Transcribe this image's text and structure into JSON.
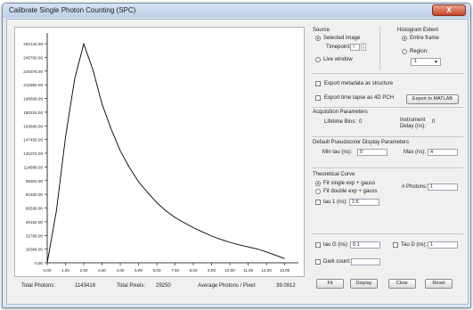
{
  "window": {
    "title": "Calibrate Single Photon Counting (SPC)",
    "close_glyph": "X"
  },
  "chart_data": {
    "type": "line",
    "x": [
      0.0,
      0.5,
      1.0,
      1.5,
      2.0,
      2.5,
      3.0,
      3.5,
      4.0,
      4.5,
      5.0,
      5.5,
      6.0,
      6.5,
      7.0,
      7.5,
      8.0,
      8.5,
      9.0,
      9.5,
      10.0,
      10.5,
      11.0,
      11.5,
      12.0,
      12.5,
      13.0
    ],
    "y": [
      0,
      62000,
      150000,
      220000,
      262000,
      231000,
      190000,
      160000,
      134000,
      114000,
      97000,
      84000,
      72000,
      62000,
      54000,
      48000,
      42000,
      37000,
      32000,
      28000,
      24500,
      21500,
      19000,
      16500,
      13000,
      9000,
      5000
    ],
    "xlim": [
      0,
      13.75
    ],
    "ylim": [
      0,
      275000
    ],
    "xticks": [
      "0.00",
      "1.00",
      "2.00",
      "3.00",
      "4.00",
      "5.00",
      "6.00",
      "7.00",
      "8.00",
      "9.00",
      "10.00",
      "11.00",
      "12.00",
      "13.00"
    ],
    "yticks": [
      "0.00",
      "16384.00",
      "32768.00",
      "49152.00",
      "65536.00",
      "81920.00",
      "98304.00",
      "114688.00",
      "131072.00",
      "147456.00",
      "163840.00",
      "180224.00",
      "196608.00",
      "212992.00",
      "229376.00",
      "245760.00",
      "262144.00"
    ],
    "grid": false,
    "line_color": "#000000"
  },
  "stats": {
    "total_photons_label": "Total Photons:",
    "total_photons": "1143418",
    "total_pixels_label": "Total Pixels:",
    "total_pixels": "29250",
    "avg_label": "Average Photons / Pixel:",
    "avg": "39.0912"
  },
  "source": {
    "heading": "Source",
    "selected_image": "Selected image",
    "timepoint_label": "Timepoint:",
    "timepoint_value": "0",
    "live_window": "Live window"
  },
  "extent": {
    "heading": "Histogram Extent",
    "entire_frame": "Entire frame",
    "region": "Region:",
    "region_value": "1"
  },
  "export": {
    "metadata": "Export metadata as structure",
    "timelapse": "Export time lapse as 4D PCH",
    "matlab_button": "Export to MATLAB"
  },
  "acquisition": {
    "heading": "Acquisition Parameters",
    "lifetime_bins_label": "Lifetime Bins:",
    "lifetime_bins": "0",
    "instrument_delay_label_1": "Instrument",
    "instrument_delay_label_2": "Delay (ns):",
    "instrument_delay": "0"
  },
  "pseudocolor": {
    "heading": "Default Pseudocolor Display Parameters",
    "min_tau_label": "Min tau (ns):",
    "min_tau": "0",
    "max_label": "Max (ns):",
    "max": "4"
  },
  "theory": {
    "heading": "Theoretical Curve",
    "fit_single": "Fit single exp + gauss",
    "fit_double": "Fit double exp + gauss",
    "photons_label": "# Photons:",
    "photons": "1",
    "tau1_label": "tau 1 (ns):",
    "tau1": "2.6",
    "taug_label": "tau G (ns):",
    "taug": "0.1",
    "taud_label": "Tau D (ns):",
    "taud": "1",
    "dark_label": "Dark count:",
    "dark": ""
  },
  "buttons": {
    "fit": "Fit",
    "display": "Display",
    "clear": "Clear",
    "reset": "Reset"
  }
}
